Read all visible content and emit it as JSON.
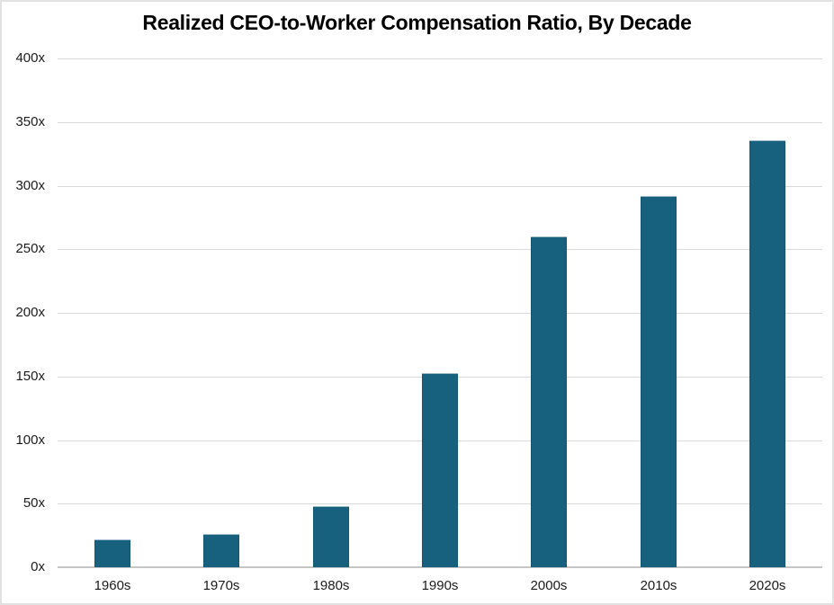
{
  "title": "Realized CEO-to-Worker Compensation Ratio, By Decade",
  "chart_data": {
    "type": "bar",
    "title": "Realized CEO-to-Worker Compensation Ratio, By Decade",
    "categories": [
      "1960s",
      "1970s",
      "1980s",
      "1990s",
      "2000s",
      "2010s",
      "2020s"
    ],
    "values": [
      22,
      26,
      48,
      153,
      260,
      292,
      336
    ],
    "xlabel": "",
    "ylabel": "",
    "ylim": [
      0,
      400
    ],
    "ytick_step": 50,
    "ytick_suffix": "x",
    "yticks": [
      "0x",
      "50x",
      "100x",
      "150x",
      "200x",
      "250x",
      "300x",
      "350x",
      "400x"
    ],
    "grid": true,
    "legend": "none",
    "colors": {
      "bar": "#17617F",
      "bar_edge": "#9FBCCB",
      "gridline": "#D9D9D9",
      "axis_line": "#C6C6C6",
      "text": "#1A1A1A",
      "title_text": "#000000",
      "background": "#FFFFFF",
      "frame_border": "#E2E2E2"
    }
  }
}
